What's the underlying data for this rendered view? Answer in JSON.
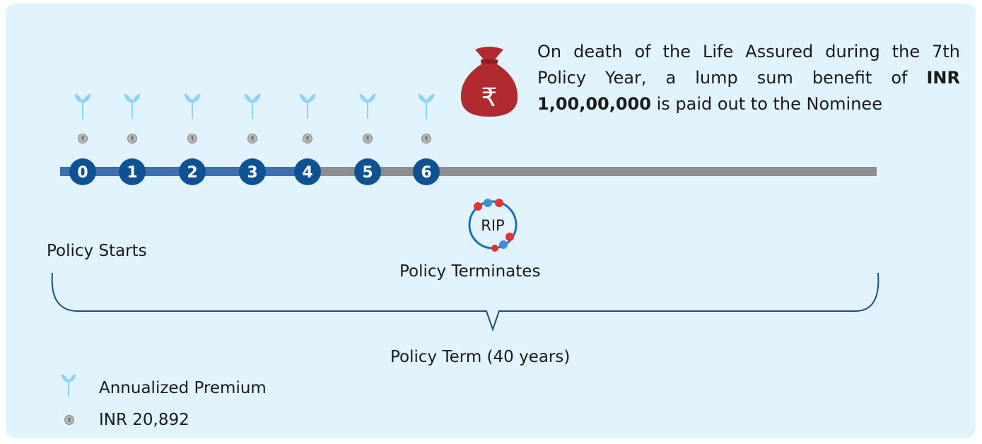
{
  "timeline": {
    "years": [
      "0",
      "1",
      "2",
      "3",
      "4",
      "5",
      "6"
    ],
    "rupee_symbol": "₹"
  },
  "death_benefit": {
    "text_before": "On death of the Life Assured during the 7th Policy Year, a lump sum benefit of",
    "amount": "INR 1,00,00,000",
    "text_after": "is paid out to the Nominee"
  },
  "rip": "RIP",
  "policy_starts": "Policy Starts",
  "policy_terminates": "Policy Terminates",
  "policy_term": "Policy Term (40 years)",
  "legend": {
    "annualized_premium": "Annualized Premium",
    "premium_amount": "INR 20,892"
  }
}
